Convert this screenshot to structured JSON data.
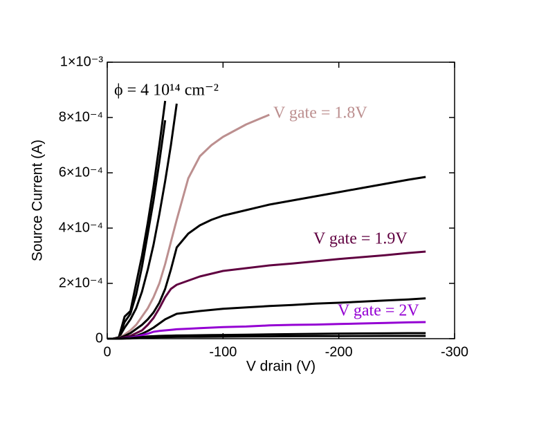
{
  "chart_data": {
    "type": "line",
    "xlabel": "V drain (V)",
    "ylabel": "Source Current (A)",
    "annotations": [
      "ϕ = 4 10¹⁴ cm⁻²",
      "V gate = 1.8V",
      "V gate = 1.9V",
      "V gate = 2V"
    ],
    "x": [
      0,
      -5,
      -10,
      -15,
      -20,
      -25,
      -30,
      -35,
      -40,
      -45,
      -50,
      -55,
      -60,
      -70,
      -80,
      -90,
      -100,
      -120,
      -140,
      -160,
      -180,
      -200,
      -220,
      -240,
      -260,
      -275
    ],
    "series": [
      {
        "color": "#000000",
        "values": [
          0,
          0,
          5e-06,
          8e-05,
          0.0001,
          0.0002,
          0.0003,
          0.00042,
          0.00055,
          0.0007,
          0.00086,
          null,
          null,
          null,
          null,
          null,
          null,
          null,
          null,
          null,
          null,
          null,
          null,
          null,
          null,
          null
        ]
      },
      {
        "color": "#000000",
        "values": [
          0,
          0,
          4e-06,
          6e-05,
          9e-05,
          0.00016,
          0.00026,
          0.00038,
          0.0005,
          0.00064,
          0.00079,
          null,
          null,
          null,
          null,
          null,
          null,
          null,
          null,
          null,
          null,
          null,
          null,
          null,
          null,
          null
        ]
      },
      {
        "color": "#000000",
        "values": [
          0,
          0,
          3e-06,
          4e-05,
          7e-05,
          0.00011,
          0.00017,
          0.00025,
          0.00034,
          0.00045,
          0.00057,
          0.0007,
          0.00085,
          null,
          null,
          null,
          null,
          null,
          null,
          null,
          null,
          null,
          null,
          null,
          null,
          null
        ]
      },
      {
        "color": "#bc8f8f",
        "values": [
          0,
          0,
          2e-06,
          1.5e-05,
          3e-05,
          5e-05,
          8e-05,
          0.00011,
          0.00015,
          0.0002,
          0.00027,
          0.00035,
          0.00043,
          0.00058,
          0.00066,
          0.0007,
          0.00073,
          0.000775,
          0.00081,
          null,
          null,
          null,
          null,
          null,
          null,
          null
        ]
      },
      {
        "color": "#000000",
        "values": [
          0,
          0,
          2e-06,
          1e-05,
          2e-05,
          3.5e-05,
          5e-05,
          7e-05,
          9.5e-05,
          0.00013,
          0.00018,
          0.00025,
          0.00033,
          0.00038,
          0.00041,
          0.00043,
          0.000445,
          0.000465,
          0.000485,
          0.0005,
          0.000515,
          0.00053,
          0.000545,
          0.00056,
          0.000575,
          0.000585
        ]
      },
      {
        "color": "#600040",
        "values": [
          0,
          0,
          1e-06,
          5e-06,
          1e-05,
          2e-05,
          3e-05,
          5e-05,
          7.5e-05,
          0.00011,
          0.00015,
          0.00018,
          0.000195,
          0.00021,
          0.000225,
          0.000235,
          0.000245,
          0.000255,
          0.000265,
          0.000272,
          0.00028,
          0.000288,
          0.000295,
          0.000302,
          0.00031,
          0.000315
        ]
      },
      {
        "color": "#000000",
        "values": [
          0,
          0,
          0,
          3e-06,
          6e-06,
          1e-05,
          1.8e-05,
          2.8e-05,
          4e-05,
          5.5e-05,
          7e-05,
          8e-05,
          9e-05,
          9.5e-05,
          0.0001,
          0.000104,
          0.000108,
          0.000113,
          0.000118,
          0.000122,
          0.000127,
          0.00013,
          0.000134,
          0.000138,
          0.000142,
          0.000146
        ]
      },
      {
        "color": "#9400d3",
        "values": [
          0,
          0,
          0,
          2e-06,
          4e-06,
          8e-06,
          1.3e-05,
          1.8e-05,
          2.5e-05,
          2.8e-05,
          3e-05,
          3.2e-05,
          3.4e-05,
          3.6e-05,
          3.8e-05,
          4e-05,
          4.2e-05,
          4.4e-05,
          4.8e-05,
          5e-05,
          5.1e-05,
          5.3e-05,
          5.5e-05,
          5.7e-05,
          5.9e-05,
          6e-05
        ]
      },
      {
        "color": "#000000",
        "values": [
          0,
          0,
          0,
          1e-06,
          2e-06,
          4e-06,
          6e-06,
          8e-06,
          9e-06,
          1e-05,
          1.05e-05,
          1.1e-05,
          1.15e-05,
          1.2e-05,
          1.25e-05,
          1.3e-05,
          1.35e-05,
          1.45e-05,
          1.55e-05,
          1.65e-05,
          1.75e-05,
          1.85e-05,
          1.9e-05,
          1.95e-05,
          2e-05,
          2e-05
        ]
      },
      {
        "color": "#000000",
        "values": [
          0,
          0,
          0,
          5e-07,
          1e-06,
          2e-06,
          3e-06,
          4e-06,
          5e-06,
          5.5e-06,
          6e-06,
          6.2e-06,
          6.4e-06,
          6.8e-06,
          7e-06,
          7.2e-06,
          7.5e-06,
          8e-06,
          8.5e-06,
          9e-06,
          9.3e-06,
          9.6e-06,
          9.8e-06,
          1e-05,
          1e-05,
          1e-05
        ]
      }
    ],
    "xlim": [
      0,
      -300
    ],
    "ylim": [
      0,
      0.001
    ],
    "xticks": [
      0,
      -100,
      -200,
      -300
    ],
    "yticks": [
      0,
      {
        "value": 0.0002,
        "label": "2×10⁻⁴"
      },
      {
        "value": 0.0004,
        "label": "4×10⁻⁴"
      },
      {
        "value": 0.0006,
        "label": "6×10⁻⁴"
      },
      {
        "value": 0.0008,
        "label": "8×10⁻⁴"
      },
      {
        "value": 0.001,
        "label": "1×10⁻³"
      }
    ]
  }
}
